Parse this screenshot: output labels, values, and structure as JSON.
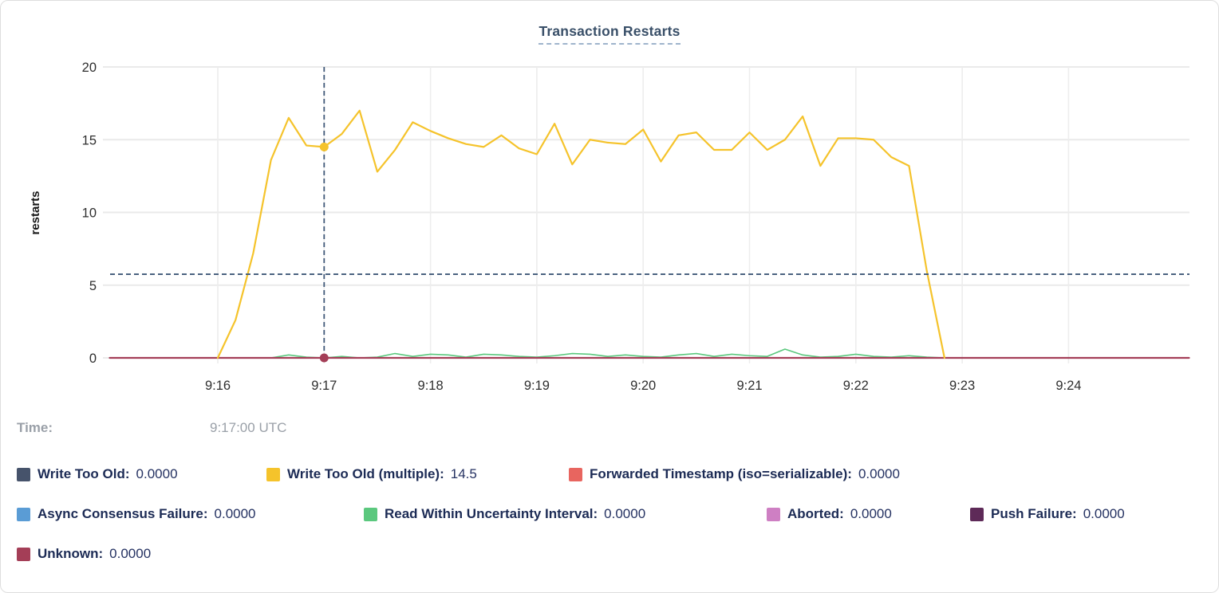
{
  "card": {
    "title": "Transaction Restarts"
  },
  "time_row": {
    "label": "Time:",
    "value": "9:17:00 UTC"
  },
  "legend": {
    "rows": [
      [
        {
          "label": "Write Too Old:",
          "value": "0.0000",
          "color": "#46536B"
        },
        {
          "label": "Write Too Old (multiple):",
          "value": "14.5",
          "color": "#F5C32B"
        },
        {
          "label": "Forwarded Timestamp (iso=serializable):",
          "value": "0.0000",
          "color": "#E8655F"
        }
      ],
      [
        {
          "label": "Async Consensus Failure:",
          "value": "0.0000",
          "color": "#5A9CD5"
        },
        {
          "label": "Read Within Uncertainty Interval:",
          "value": "0.0000",
          "color": "#5BC87E"
        },
        {
          "label": "Aborted:",
          "value": "0.0000",
          "color": "#CE7FC3"
        },
        {
          "label": "Push Failure:",
          "value": "0.0000",
          "color": "#5E2A58"
        }
      ],
      [
        {
          "label": "Unknown:",
          "value": "0.0000",
          "color": "#A43E57"
        }
      ]
    ]
  },
  "chart_data": {
    "type": "line",
    "title": "Transaction Restarts",
    "xlabel": "",
    "ylabel": "restarts",
    "ylim": [
      0,
      20
    ],
    "yticks": [
      0,
      5,
      10,
      15,
      20
    ],
    "xticks": [
      "9:16",
      "9:17",
      "9:18",
      "9:19",
      "9:20",
      "9:21",
      "9:22",
      "9:23",
      "9:24"
    ],
    "grid": true,
    "grid_color": "#EAEAEA",
    "crosshair_color": "#3F5878",
    "hover": {
      "time": "9:17:00 UTC",
      "x_tick": "9:17",
      "t_sec": 60,
      "hline_value": 5.75,
      "points": [
        {
          "series": "Write Too Old (multiple)",
          "value": 14.5
        },
        {
          "series": "Unknown",
          "value": 0
        }
      ]
    },
    "series": [
      {
        "name": "Read Within Uncertainty Interval",
        "color": "#5BC87E",
        "width": 1.6,
        "start_t": 30,
        "step": 10,
        "values": [
          0,
          0.2,
          0.05,
          0,
          0.1,
          0,
          0.05,
          0.3,
          0.1,
          0.25,
          0.2,
          0.05,
          0.25,
          0.2,
          0.1,
          0.05,
          0.15,
          0.3,
          0.25,
          0.1,
          0.2,
          0.1,
          0.05,
          0.2,
          0.3,
          0.1,
          0.25,
          0.15,
          0.1,
          0.6,
          0.2,
          0.05,
          0.1,
          0.25,
          0.1,
          0.05,
          0.15,
          0.05,
          0
        ]
      },
      {
        "name": "Forwarded Timestamp (iso=serializable)",
        "color": "#E8655F",
        "width": 1.6,
        "flat_value": 0,
        "t_range": [
          -61,
          548
        ]
      },
      {
        "name": "Unknown",
        "color": "#A43E57",
        "width": 2.2,
        "flat_value": 0,
        "t_range": [
          -61,
          548
        ]
      },
      {
        "name": "Write Too Old (multiple)",
        "color": "#F5C32B",
        "width": 2.2,
        "start_t": 0,
        "step": 10,
        "values": [
          0,
          2.6,
          7.2,
          13.6,
          16.5,
          14.6,
          14.5,
          15.4,
          17.0,
          12.8,
          14.3,
          16.2,
          15.6,
          15.1,
          14.7,
          14.5,
          15.3,
          14.4,
          14.0,
          16.1,
          13.3,
          15.0,
          14.8,
          14.7,
          15.7,
          13.5,
          15.3,
          15.5,
          14.3,
          14.3,
          15.5,
          14.3,
          15.0,
          16.6,
          13.2,
          15.1,
          15.1,
          15.0,
          13.8,
          13.2,
          6.0,
          0
        ]
      }
    ]
  }
}
